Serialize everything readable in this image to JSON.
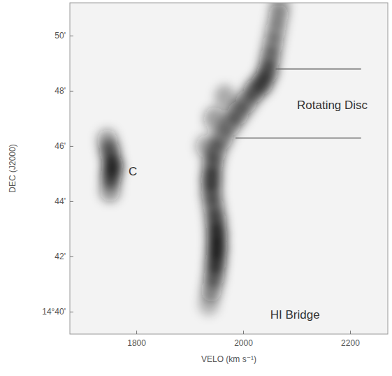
{
  "chart_data": {
    "type": "scatter",
    "marker": "blob",
    "color": "#111111",
    "x_label": "VELO (km s⁻¹)",
    "y_label": "DEC (J2000)",
    "xlim": [
      1675,
      2270
    ],
    "xticks": [
      1800,
      2000,
      2200
    ],
    "ylim": [
      39.2,
      51.2
    ],
    "yticks": [
      {
        "value": 40,
        "label": "14°40'"
      },
      {
        "value": 42,
        "label": "42'"
      },
      {
        "value": 44,
        "label": "44'"
      },
      {
        "value": 46,
        "label": "46'"
      },
      {
        "value": 48,
        "label": "48'"
      },
      {
        "value": 50,
        "label": "50'"
      }
    ],
    "x": [
      1935,
      1940,
      1945,
      1948,
      1950,
      1950,
      1948,
      1944,
      1940,
      1940,
      1942,
      1948,
      1960,
      1975,
      1990,
      2005,
      2020,
      2035,
      2045,
      2050,
      2055,
      2060,
      2065,
      2068,
      1930,
      1945,
      1965,
      1750,
      1752,
      1755,
      1750,
      1745
    ],
    "y": [
      40.3,
      40.8,
      41.3,
      41.8,
      42.3,
      42.8,
      43.3,
      43.8,
      44.3,
      44.8,
      45.3,
      45.8,
      46.3,
      46.8,
      47.2,
      47.6,
      48.0,
      48.3,
      48.7,
      49.2,
      49.7,
      50.2,
      50.7,
      51.1,
      46.0,
      47.0,
      47.8,
      44.4,
      44.9,
      45.3,
      45.8,
      46.2
    ],
    "intensity": [
      0.3,
      0.5,
      0.7,
      0.9,
      1.0,
      0.95,
      0.8,
      0.65,
      0.7,
      0.85,
      0.7,
      0.6,
      0.6,
      0.6,
      0.65,
      0.6,
      0.7,
      0.8,
      0.75,
      0.6,
      0.5,
      0.45,
      0.4,
      0.35,
      0.4,
      0.45,
      0.35,
      0.5,
      0.8,
      0.95,
      0.7,
      0.45
    ],
    "annotations": [
      {
        "text": "C",
        "x": 1785,
        "y": 45.1
      },
      {
        "text": "Rotating Disc",
        "x": 2100,
        "y": 47.5
      },
      {
        "text": "HI Bridge",
        "x": 2050,
        "y": 39.9
      }
    ],
    "lines": [
      {
        "x": [
          2060,
          2220
        ],
        "y": 48.8
      },
      {
        "x": [
          1985,
          2220
        ],
        "y": 46.3
      }
    ]
  }
}
